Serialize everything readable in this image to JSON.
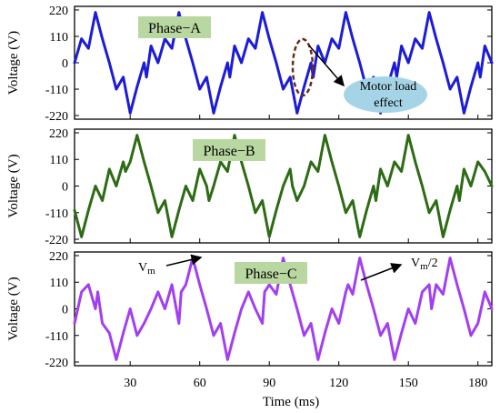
{
  "chart_data": {
    "type": "line",
    "xlabel": "Time (ms)",
    "xticks": [
      30,
      60,
      90,
      120,
      150,
      180
    ],
    "xlim": [
      6,
      186
    ],
    "panels": [
      {
        "name": "Phase−A",
        "ylabel": "Voltage (V)",
        "yticks": [
          220,
          110,
          0,
          -110,
          -220
        ],
        "ylim": [
          -235,
          235
        ],
        "color": "#1c1cd8",
        "badge_color": "#b9d7a0",
        "x": [
          6,
          9,
          12,
          15,
          18,
          21,
          24,
          27,
          30,
          33,
          36,
          37,
          39,
          42,
          45,
          48,
          51,
          54,
          57,
          60,
          63,
          66,
          69,
          72,
          73,
          75,
          78,
          81,
          84,
          87,
          90,
          93,
          96,
          99,
          102,
          105,
          108,
          109,
          111,
          114,
          117,
          120,
          123,
          126,
          129,
          132,
          135,
          138,
          141,
          144,
          145,
          147,
          150,
          153,
          156,
          159,
          162,
          165,
          168,
          171,
          174,
          177,
          180,
          181,
          183,
          186
        ],
        "y": [
          0,
          100,
          60,
          210,
          100,
          0,
          -110,
          -60,
          -210,
          -100,
          0,
          -60,
          70,
          0,
          100,
          60,
          210,
          100,
          0,
          -110,
          -60,
          -210,
          -100,
          0,
          -60,
          70,
          0,
          100,
          60,
          210,
          100,
          0,
          -110,
          -60,
          -210,
          -100,
          0,
          -60,
          70,
          0,
          100,
          60,
          210,
          100,
          0,
          -110,
          -60,
          -210,
          -100,
          0,
          -60,
          70,
          0,
          100,
          60,
          210,
          100,
          0,
          -110,
          -60,
          -210,
          -100,
          0,
          -60,
          70,
          0
        ]
      },
      {
        "name": "Phase−B",
        "ylabel": "Voltage (V)",
        "yticks": [
          220,
          110,
          0,
          -110,
          -220
        ],
        "ylim": [
          -235,
          235
        ],
        "color": "#2d6b14",
        "badge_color": "#b9d7a0",
        "x": [
          6,
          9,
          12,
          15,
          18,
          21,
          24,
          27,
          28,
          30,
          33,
          36,
          39,
          42,
          45,
          48,
          51,
          54,
          57,
          60,
          63,
          64,
          66,
          69,
          72,
          75,
          78,
          81,
          84,
          87,
          90,
          93,
          96,
          99,
          100,
          102,
          105,
          108,
          111,
          114,
          117,
          120,
          123,
          126,
          129,
          132,
          135,
          136,
          138,
          141,
          144,
          147,
          150,
          153,
          156,
          159,
          162,
          165,
          168,
          171,
          172,
          174,
          177,
          180,
          183,
          186
        ],
        "y": [
          -100,
          -210,
          -100,
          0,
          -60,
          70,
          0,
          100,
          60,
          100,
          210,
          100,
          0,
          -110,
          -60,
          -210,
          -100,
          0,
          -60,
          70,
          0,
          -60,
          0,
          100,
          60,
          210,
          100,
          0,
          -110,
          -60,
          -210,
          -100,
          0,
          70,
          0,
          -60,
          0,
          100,
          60,
          210,
          100,
          0,
          -110,
          -60,
          -210,
          -100,
          0,
          -60,
          70,
          0,
          100,
          60,
          210,
          100,
          0,
          -110,
          -60,
          -210,
          -100,
          0,
          -60,
          70,
          0,
          100,
          60,
          0
        ]
      },
      {
        "name": "Phase−C",
        "ylabel": "Voltage (V)",
        "yticks": [
          220,
          110,
          0,
          -110,
          -220
        ],
        "ylim": [
          -235,
          235
        ],
        "color": "#a23ff0",
        "badge_color": "#b9d7a0",
        "x": [
          6,
          9,
          12,
          15,
          16,
          18,
          21,
          24,
          27,
          30,
          33,
          36,
          39,
          42,
          45,
          48,
          51,
          52,
          54,
          57,
          60,
          63,
          66,
          69,
          72,
          75,
          78,
          81,
          84,
          87,
          88,
          90,
          93,
          96,
          99,
          102,
          105,
          108,
          111,
          114,
          117,
          120,
          123,
          124,
          126,
          129,
          132,
          135,
          138,
          141,
          144,
          147,
          150,
          153,
          156,
          159,
          160,
          162,
          165,
          168,
          171,
          174,
          177,
          180,
          183,
          186
        ],
        "y": [
          -60,
          70,
          100,
          0,
          70,
          -60,
          -100,
          -210,
          -100,
          0,
          -110,
          -60,
          0,
          70,
          0,
          100,
          -60,
          70,
          100,
          210,
          100,
          0,
          -110,
          -60,
          -210,
          -100,
          0,
          70,
          0,
          -60,
          70,
          100,
          60,
          210,
          100,
          0,
          -110,
          -60,
          -210,
          -100,
          0,
          -60,
          70,
          100,
          60,
          210,
          100,
          0,
          -110,
          -60,
          -210,
          -100,
          0,
          -60,
          70,
          100,
          0,
          100,
          60,
          210,
          100,
          0,
          -110,
          -60,
          70,
          0
        ]
      }
    ],
    "annotations": {
      "motor_load": "Motor load effect",
      "vm": "V",
      "vm_sub": "m",
      "vm_half": "V",
      "vm_half_sub": "m",
      "vm_half_suffix": "/2"
    }
  }
}
